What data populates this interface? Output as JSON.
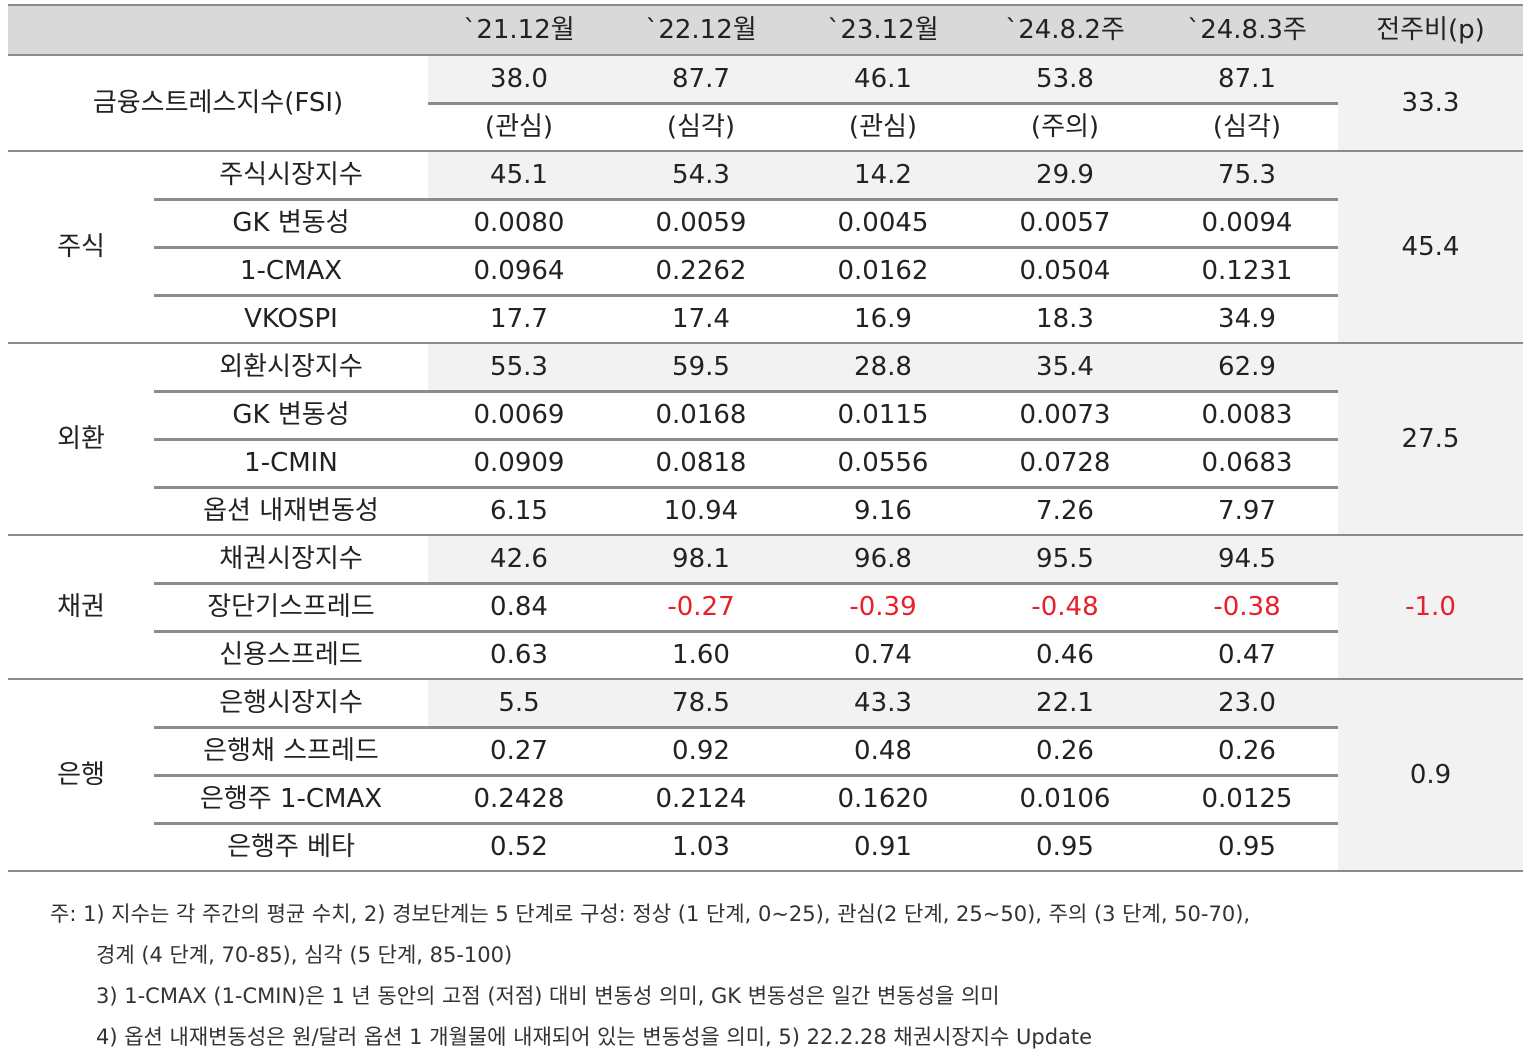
{
  "headers": [
    "",
    "",
    "`21.12월",
    "`22.12월",
    "`23.12월",
    "`24.8.2주",
    "`24.8.3주",
    "전주비(p)"
  ],
  "fsi": {
    "label": "금융스트레스지수(FSI)",
    "values": [
      "38.0",
      "87.7",
      "46.1",
      "53.8",
      "87.1"
    ],
    "levels": [
      "(관심)",
      "(심각)",
      "(관심)",
      "(주의)",
      "(심각)"
    ],
    "change": "33.3"
  },
  "sections": [
    {
      "name": "주식",
      "change": "45.4",
      "change_negative": false,
      "rows": [
        {
          "label": "주식시장지수",
          "values": [
            "45.1",
            "54.3",
            "14.2",
            "29.9",
            "75.3"
          ]
        },
        {
          "label": "GK 변동성",
          "values": [
            "0.0080",
            "0.0059",
            "0.0045",
            "0.0057",
            "0.0094"
          ]
        },
        {
          "label": "1-CMAX",
          "values": [
            "0.0964",
            "0.2262",
            "0.0162",
            "0.0504",
            "0.1231"
          ]
        },
        {
          "label": "VKOSPI",
          "values": [
            "17.7",
            "17.4",
            "16.9",
            "18.3",
            "34.9"
          ]
        }
      ]
    },
    {
      "name": "외환",
      "change": "27.5",
      "change_negative": false,
      "rows": [
        {
          "label": "외환시장지수",
          "values": [
            "55.3",
            "59.5",
            "28.8",
            "35.4",
            "62.9"
          ]
        },
        {
          "label": "GK 변동성",
          "values": [
            "0.0069",
            "0.0168",
            "0.0115",
            "0.0073",
            "0.0083"
          ]
        },
        {
          "label": "1-CMIN",
          "values": [
            "0.0909",
            "0.0818",
            "0.0556",
            "0.0728",
            "0.0683"
          ]
        },
        {
          "label": "옵션 내재변동성",
          "values": [
            "6.15",
            "10.94",
            "9.16",
            "7.26",
            "7.97"
          ]
        }
      ]
    },
    {
      "name": "채권",
      "change": "-1.0",
      "change_negative": true,
      "rows": [
        {
          "label": "채권시장지수",
          "values": [
            "42.6",
            "98.1",
            "96.8",
            "95.5",
            "94.5"
          ]
        },
        {
          "label": "장단기스프레드",
          "values": [
            "0.84",
            "-0.27",
            "-0.39",
            "-0.48",
            "-0.38"
          ]
        },
        {
          "label": "신용스프레드",
          "values": [
            "0.63",
            "1.60",
            "0.74",
            "0.46",
            "0.47"
          ]
        }
      ]
    },
    {
      "name": "은행",
      "change": "0.9",
      "change_negative": false,
      "rows": [
        {
          "label": "은행시장지수",
          "values": [
            "5.5",
            "78.5",
            "43.3",
            "22.1",
            "23.0"
          ]
        },
        {
          "label": "은행채 스프레드",
          "values": [
            "0.27",
            "0.92",
            "0.48",
            "0.26",
            "0.26"
          ]
        },
        {
          "label": "은행주 1-CMAX",
          "values": [
            "0.2428",
            "0.2124",
            "0.1620",
            "0.0106",
            "0.0125"
          ]
        },
        {
          "label": "은행주 베타",
          "values": [
            "0.52",
            "1.03",
            "0.91",
            "0.95",
            "0.95"
          ]
        }
      ]
    }
  ],
  "notes": [
    "주: 1) 지수는 각 주간의 평균 수치, 2) 경보단계는 5 단계로 구성: 정상 (1 단계, 0~25), 관심(2 단계, 25~50), 주의 (3 단계, 50-70),",
    "경계 (4 단계, 70-85), 심각 (5 단계, 85-100)",
    "3) 1-CMAX (1-CMIN)은 1 년 동안의 고점 (저점) 대비 변동성 의미, GK 변동성은 일간 변동성을 의미",
    "4) 옵션 내재변동성은 원/달러 옵션 1 개월물에 내재되어 있는 변동성을 의미, 5) 22.2.28 채권시장지수 Update"
  ],
  "colors": {
    "header_bg": "#d9d9d9",
    "shaded_bg": "#f2f2f2",
    "negative": "#e8202a",
    "rule": "#8c8c8c"
  }
}
